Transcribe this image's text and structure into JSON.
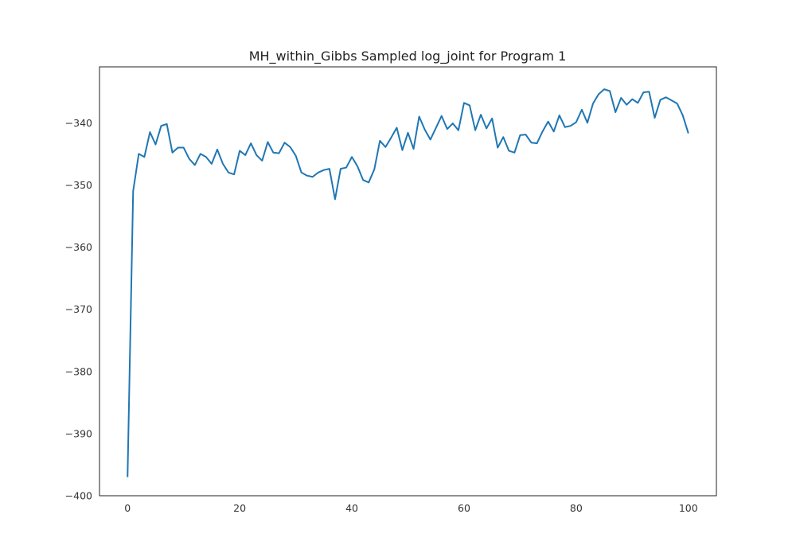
{
  "chart_data": {
    "type": "line",
    "title": "MH_within_Gibbs Sampled log_joint for Program 1",
    "xlabel": "",
    "ylabel": "",
    "xlim": [
      -5,
      105
    ],
    "ylim": [
      -400,
      -331
    ],
    "xticks": [
      0,
      20,
      40,
      60,
      80,
      100
    ],
    "yticks": [
      -400,
      -390,
      -380,
      -370,
      -360,
      -350,
      -340
    ],
    "grid": false,
    "line_color": "#1f77b4",
    "series": [
      {
        "x": [
          0,
          1,
          2,
          3,
          4,
          5,
          6,
          7,
          8,
          9,
          10,
          11,
          12,
          13,
          14,
          15,
          16,
          17,
          18,
          19,
          20,
          21,
          22,
          23,
          24,
          25,
          26,
          27,
          28,
          29,
          30,
          31,
          32,
          33,
          34,
          35,
          36,
          37,
          38,
          39,
          40,
          41,
          42,
          43,
          44,
          45,
          46,
          47,
          48,
          49,
          50,
          51,
          52,
          53,
          54,
          55,
          56,
          57,
          58,
          59,
          60,
          61,
          62,
          63,
          64,
          65,
          66,
          67,
          68,
          69,
          70,
          71,
          72,
          73,
          74,
          75,
          76,
          77,
          78,
          79,
          80,
          81,
          82,
          83,
          84,
          85,
          86,
          87,
          88,
          89,
          90,
          91,
          92,
          93,
          94,
          95,
          96,
          97,
          98,
          99,
          100
        ],
        "values": [
          -397,
          -351,
          -345,
          -345.5,
          -341.5,
          -343.5,
          -340.5,
          -340.2,
          -344.8,
          -344,
          -344,
          -345.8,
          -346.8,
          -345,
          -345.5,
          -346.6,
          -344.3,
          -346.6,
          -348,
          -348.3,
          -344.5,
          -345.2,
          -343.3,
          -345.2,
          -346.1,
          -343.1,
          -344.8,
          -344.9,
          -343.2,
          -343.9,
          -345.3,
          -348,
          -348.5,
          -348.7,
          -348,
          -347.6,
          -347.4,
          -352.3,
          -347.4,
          -347.2,
          -345.5,
          -347,
          -349.2,
          -349.6,
          -347.5,
          -342.9,
          -343.9,
          -342.4,
          -340.8,
          -344.4,
          -341.6,
          -344.2,
          -339,
          -341.1,
          -342.7,
          -340.8,
          -338.9,
          -341,
          -340.1,
          -341.2,
          -336.8,
          -337.2,
          -341.2,
          -338.7,
          -340.9,
          -339.3,
          -344,
          -342.3,
          -344.5,
          -344.8,
          -342,
          -341.9,
          -343.2,
          -343.3,
          -341.4,
          -339.8,
          -341.4,
          -338.8,
          -340.7,
          -340.5,
          -339.9,
          -337.9,
          -340,
          -336.9,
          -335.4,
          -334.6,
          -334.9,
          -338.3,
          -336,
          -337.1,
          -336.2,
          -336.8,
          -335.1,
          -335,
          -339.2,
          -336.3,
          -335.9,
          -336.4,
          -336.9,
          -338.8,
          -341.7
        ]
      }
    ]
  }
}
